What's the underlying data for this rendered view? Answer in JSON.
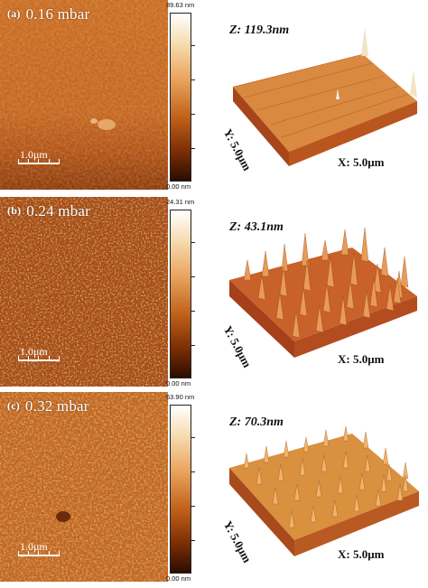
{
  "figure": {
    "panels": [
      {
        "tag": "(a)",
        "pressure": "0.16 mbar",
        "scalebar": "1.0μm",
        "colorbar_max": "89.63 nm",
        "colorbar_min": "0.00 nm",
        "z_label": "Z: 119.3nm",
        "y_label": "Y: 5.0μm",
        "x_label": "X: 5.0μm"
      },
      {
        "tag": "(b)",
        "pressure": "0.24 mbar",
        "scalebar": "1.0μm",
        "colorbar_max": "24.31 nm",
        "colorbar_min": "0.00 nm",
        "z_label": "Z: 43.1nm",
        "y_label": "Y: 5.0μm",
        "x_label": "X: 5.0μm"
      },
      {
        "tag": "(c)",
        "pressure": "0.32 mbar",
        "scalebar": "1.0μm",
        "colorbar_max": "63.90 nm",
        "colorbar_min": "0.00 nm",
        "z_label": "Z: 70.3nm",
        "y_label": "Y: 5.0μm",
        "x_label": "X: 5.0μm"
      }
    ],
    "colors": {
      "afm_dark": "#7a3306",
      "afm_mid": "#c8671f",
      "afm_light": "#f3c27a",
      "surface_top": "#e08a3a",
      "surface_side": "#a8451a"
    }
  }
}
